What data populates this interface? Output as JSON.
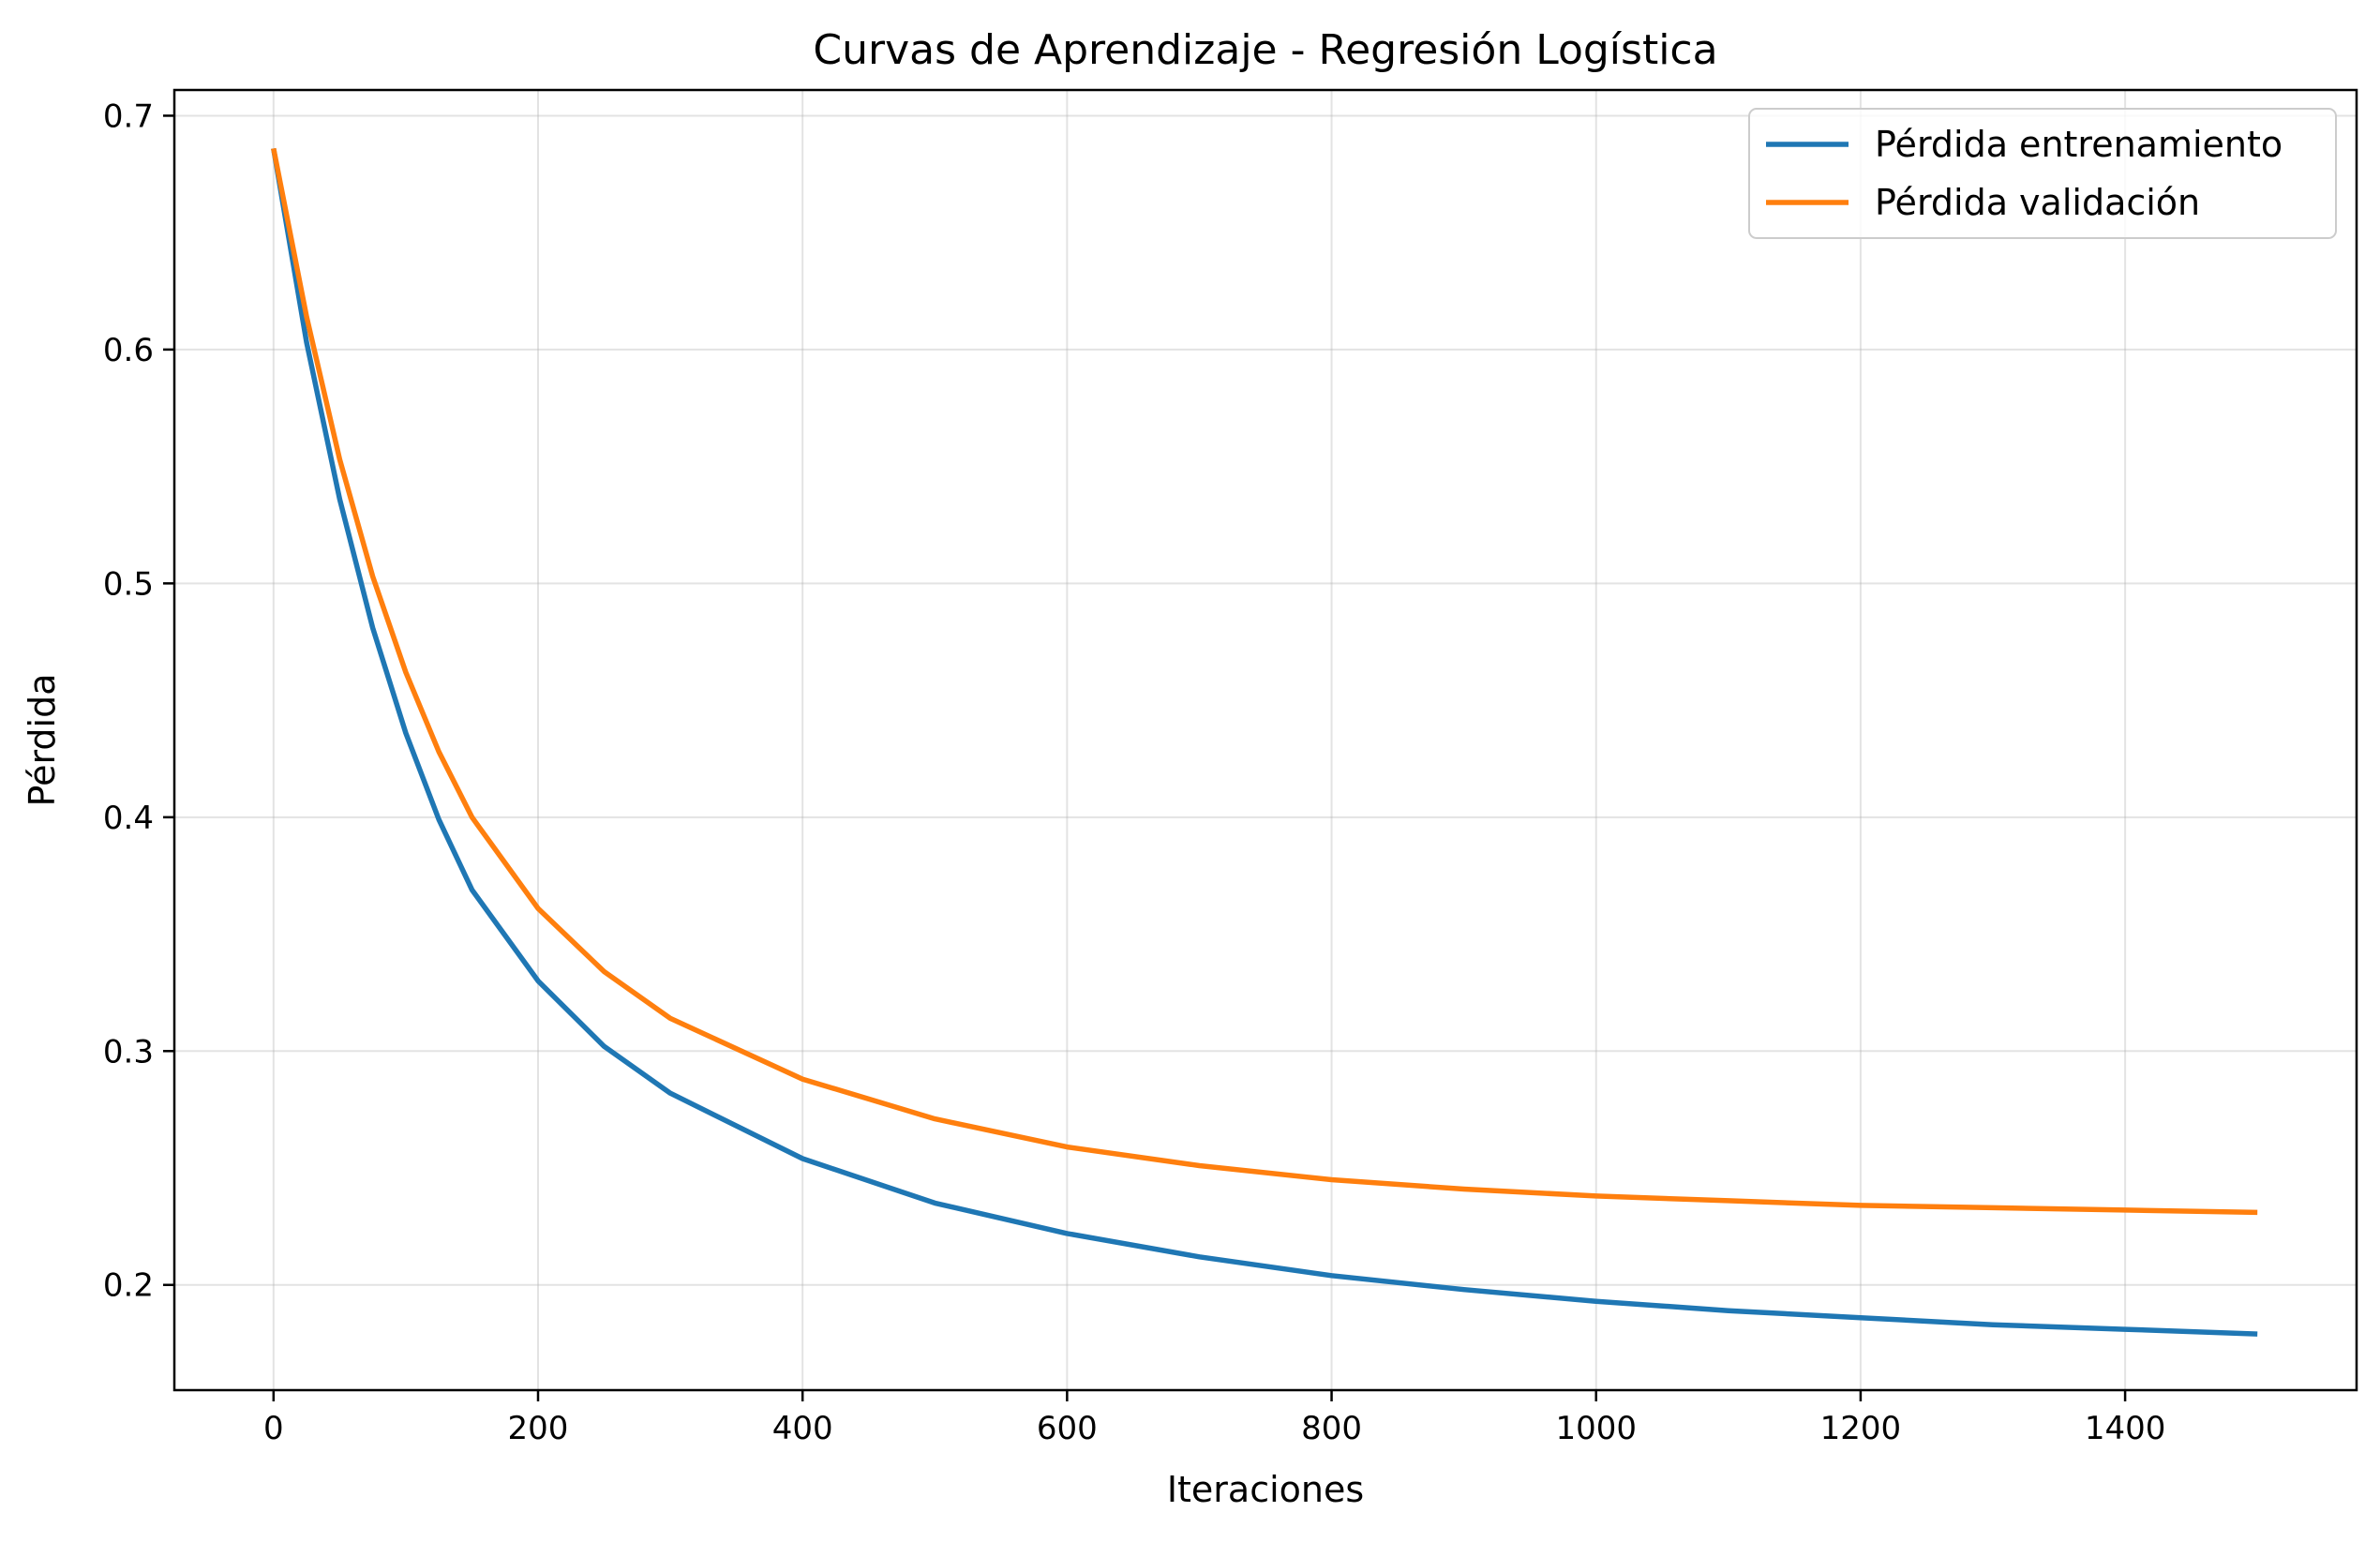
{
  "chart_data": {
    "type": "line",
    "title": "Curvas de Aprendizaje - Regresión Logística",
    "xlabel": "Iteraciones",
    "ylabel": "Pérdida",
    "xlim": [
      -75,
      1575
    ],
    "ylim": [
      0.155,
      0.711
    ],
    "xticks": [
      0,
      200,
      400,
      600,
      800,
      1000,
      1200,
      1400
    ],
    "xtick_labels": [
      "0",
      "200",
      "400",
      "600",
      "800",
      "1000",
      "1200",
      "1400"
    ],
    "yticks": [
      0.2,
      0.3,
      0.4,
      0.5,
      0.6,
      0.7
    ],
    "ytick_labels": [
      "0.2",
      "0.3",
      "0.4",
      "0.5",
      "0.6",
      "0.7"
    ],
    "grid": true,
    "legend_position": "upper-right",
    "x": [
      0,
      25,
      50,
      75,
      100,
      125,
      150,
      200,
      250,
      300,
      400,
      500,
      600,
      700,
      800,
      900,
      1000,
      1100,
      1200,
      1300,
      1400,
      1500
    ],
    "series": [
      {
        "name": "Pérdida entrenamiento",
        "color": "#1f77b4",
        "values": [
          0.686,
          0.603,
          0.536,
          0.481,
          0.436,
          0.399,
          0.369,
          0.33,
          0.302,
          0.282,
          0.254,
          0.235,
          0.222,
          0.212,
          0.204,
          0.198,
          0.193,
          0.189,
          0.186,
          0.183,
          0.181,
          0.179
        ]
      },
      {
        "name": "Pérdida validación",
        "color": "#ff7f0e",
        "values": [
          0.686,
          0.614,
          0.553,
          0.503,
          0.462,
          0.428,
          0.4,
          0.361,
          0.334,
          0.314,
          0.288,
          0.271,
          0.259,
          0.251,
          0.245,
          0.241,
          0.238,
          0.236,
          0.234,
          0.233,
          0.232,
          0.231
        ]
      }
    ]
  }
}
